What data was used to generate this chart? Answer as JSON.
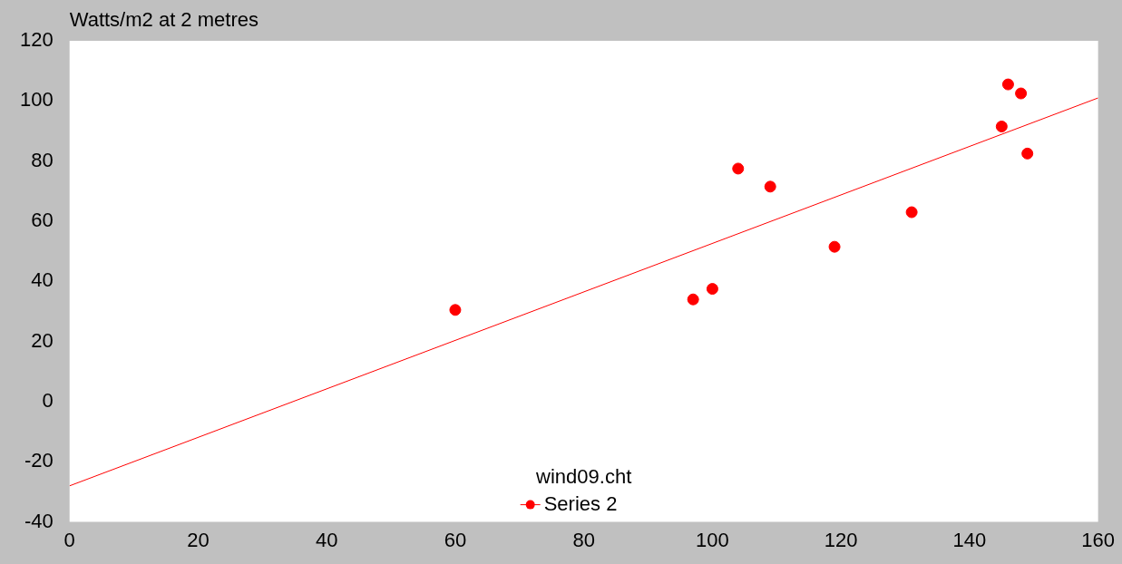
{
  "chart_data": {
    "type": "scatter",
    "ylabel": "Watts/m2 at 2 metres",
    "legend_title": "wind09.cht",
    "legend": "bottom",
    "marker": "circle",
    "grid": false,
    "series": [
      {
        "name": "Series 2",
        "color": "#ff0000",
        "x": [
          60,
          97,
          100,
          104,
          109,
          119,
          131,
          145,
          146,
          148,
          149
        ],
        "values": [
          30.5,
          34,
          37.5,
          77.5,
          71.5,
          51.5,
          63,
          91.5,
          105.5,
          102.5,
          82.5
        ]
      },
      {
        "type": "line",
        "color": "#ff0000",
        "marker": "none",
        "x": [
          0,
          160
        ],
        "values": [
          -28,
          101
        ]
      }
    ],
    "xlim": [
      0,
      160
    ],
    "xticks": [
      0,
      20,
      40,
      60,
      80,
      100,
      120,
      140,
      160
    ],
    "ylim": [
      -40,
      120
    ],
    "yticks": [
      -40,
      -20,
      0,
      20,
      40,
      60,
      80,
      100,
      120
    ]
  }
}
